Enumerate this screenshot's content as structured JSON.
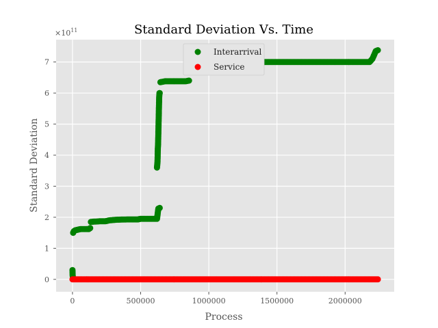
{
  "chart_data": {
    "type": "scatter",
    "title": "Standard Deviation Vs. Time",
    "xlabel": "Process",
    "ylabel": "Standard Deviation",
    "y_multiplier_base": "×10",
    "y_multiplier_exp": "11",
    "xlim": [
      -120000,
      2360000
    ],
    "ylim": [
      -0.4,
      7.72
    ],
    "xticks": [
      0,
      500000,
      1000000,
      1500000,
      2000000
    ],
    "xtick_labels": [
      "0",
      "500000",
      "1000000",
      "1500000",
      "2000000"
    ],
    "yticks": [
      0,
      1,
      2,
      3,
      4,
      5,
      6,
      7
    ],
    "ytick_labels": [
      "0",
      "1",
      "2",
      "3",
      "4",
      "5",
      "6",
      "7"
    ],
    "grid": true,
    "legend_position": "top-center",
    "series": [
      {
        "name": "Interarrival",
        "color": "#008000",
        "segments": [
          [
            [
              0,
              0.3
            ],
            [
              1000,
              0.15
            ],
            [
              3000,
              0.05
            ],
            [
              8000,
              0.02
            ]
          ],
          [
            [
              5000,
              1.5
            ],
            [
              10000,
              1.55
            ],
            [
              20000,
              1.58
            ],
            [
              40000,
              1.6
            ],
            [
              60000,
              1.62
            ],
            [
              80000,
              1.62
            ],
            [
              100000,
              1.62
            ],
            [
              120000,
              1.62
            ],
            [
              130000,
              1.65
            ]
          ],
          [
            [
              135000,
              1.85
            ],
            [
              160000,
              1.86
            ],
            [
              200000,
              1.87
            ],
            [
              240000,
              1.87
            ],
            [
              270000,
              1.9
            ],
            [
              320000,
              1.92
            ],
            [
              400000,
              1.93
            ],
            [
              480000,
              1.93
            ],
            [
              500000,
              1.95
            ],
            [
              560000,
              1.95
            ],
            [
              600000,
              1.95
            ],
            [
              620000,
              1.95
            ],
            [
              630000,
              2.28
            ],
            [
              640000,
              2.3
            ]
          ],
          [
            [
              620000,
              3.6
            ],
            [
              622000,
              3.7
            ],
            [
              624000,
              3.8
            ],
            [
              626000,
              4.2
            ],
            [
              628000,
              4.35
            ],
            [
              632000,
              5.1
            ],
            [
              636000,
              5.85
            ],
            [
              638000,
              6.0
            ],
            [
              640000,
              6.0
            ]
          ],
          [
            [
              645000,
              6.35
            ],
            [
              680000,
              6.38
            ],
            [
              720000,
              6.38
            ],
            [
              760000,
              6.38
            ],
            [
              800000,
              6.38
            ],
            [
              830000,
              6.38
            ],
            [
              855000,
              6.4
            ]
          ],
          [
            [
              860000,
              6.95
            ],
            [
              900000,
              6.96
            ],
            [
              950000,
              6.97
            ],
            [
              1000000,
              6.98
            ],
            [
              1100000,
              6.99
            ],
            [
              1200000,
              7.0
            ],
            [
              1300000,
              7.0
            ],
            [
              1400000,
              7.0
            ],
            [
              1500000,
              7.0
            ],
            [
              1600000,
              7.0
            ],
            [
              1700000,
              7.0
            ],
            [
              1800000,
              7.0
            ],
            [
              1900000,
              7.0
            ],
            [
              2000000,
              7.0
            ],
            [
              2100000,
              7.0
            ],
            [
              2180000,
              7.0
            ],
            [
              2200000,
              7.1
            ],
            [
              2215000,
              7.25
            ],
            [
              2225000,
              7.35
            ],
            [
              2240000,
              7.38
            ]
          ]
        ]
      },
      {
        "name": "Service",
        "color": "#ff0000",
        "segments": [
          [
            [
              0,
              0.0
            ],
            [
              100000,
              0.0
            ],
            [
              250000,
              0.0
            ],
            [
              500000,
              0.0
            ],
            [
              750000,
              0.0
            ],
            [
              1000000,
              0.0
            ],
            [
              1250000,
              0.0
            ],
            [
              1500000,
              0.0
            ],
            [
              1750000,
              0.0
            ],
            [
              2000000,
              0.0
            ],
            [
              2240000,
              0.0
            ]
          ]
        ]
      }
    ]
  }
}
